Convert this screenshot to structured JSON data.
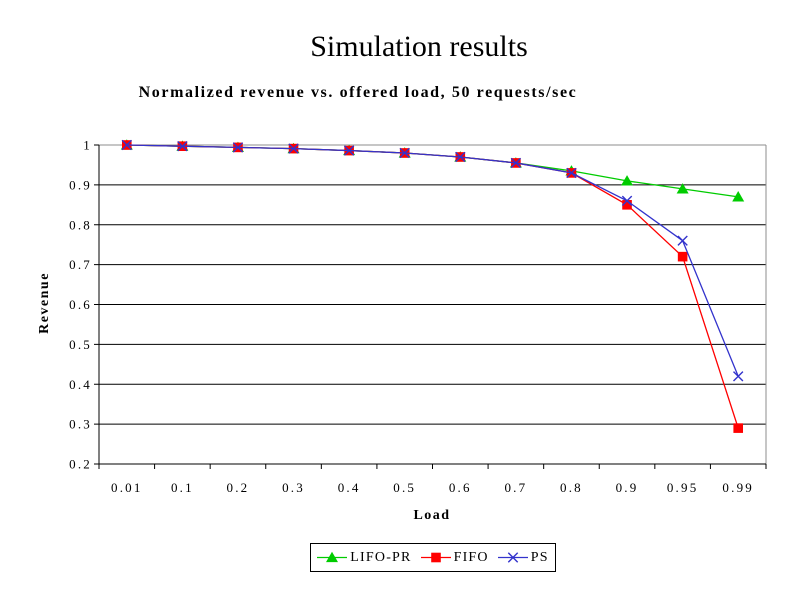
{
  "page": {
    "background": "#FFFFFF"
  },
  "chart_data": {
    "type": "line",
    "title": "Simulation results",
    "subtitle": "Normalized revenue vs. offered load, 50 requests/sec",
    "xlabel": "Load",
    "ylabel": "Revenue",
    "categories": [
      "0.01",
      "0.1",
      "0.2",
      "0.3",
      "0.4",
      "0.5",
      "0.6",
      "0.7",
      "0.8",
      "0.9",
      "0.95",
      "0.99"
    ],
    "y_ticks": [
      "1",
      "0.9",
      "0.8",
      "0.7",
      "0.6",
      "0.5",
      "0.4",
      "0.3",
      "0.2"
    ],
    "ylim": [
      0.2,
      1
    ],
    "grid": {
      "horizontal": true,
      "vertical": false
    },
    "legend_position": "bottom-center",
    "colors": {
      "plot_border": "#8C8C8C",
      "gridline": "#000000",
      "axis": "#000000",
      "background": "#FFFFFF"
    },
    "series": [
      {
        "name": "LIFO-PR",
        "marker": "triangle",
        "color": "#00CC00",
        "values": [
          1,
          0.997,
          0.994,
          0.991,
          0.986,
          0.98,
          0.97,
          0.955,
          0.935,
          0.91,
          0.89,
          0.87
        ]
      },
      {
        "name": "FIFO",
        "marker": "square",
        "color": "#FF0000",
        "values": [
          1,
          0.997,
          0.994,
          0.991,
          0.986,
          0.98,
          0.97,
          0.955,
          0.93,
          0.85,
          0.72,
          0.29
        ]
      },
      {
        "name": "PS",
        "marker": "x",
        "color": "#3333CC",
        "values": [
          1,
          0.997,
          0.994,
          0.991,
          0.986,
          0.98,
          0.97,
          0.955,
          0.93,
          0.86,
          0.76,
          0.42
        ]
      }
    ]
  }
}
